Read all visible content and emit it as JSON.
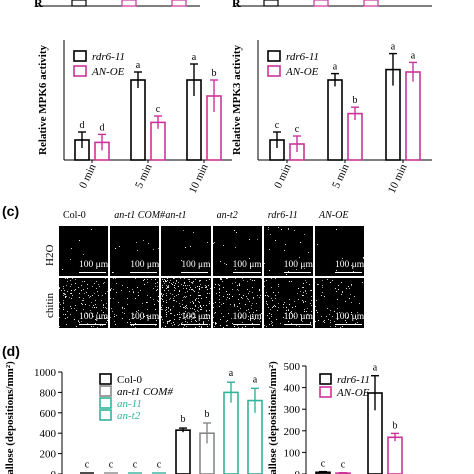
{
  "panel_labels": {
    "c": "(c)",
    "d": "(d)"
  },
  "top_fragments": {
    "left_ylabel_tail": "R",
    "right_ylabel_tail": "R",
    "x_ticks": [
      "0 min",
      "5 min",
      "10 min"
    ]
  },
  "panel_c": {
    "columns": [
      "Col-0",
      "an-t1 COM#",
      "an-t1",
      "an-t2",
      "rdr6-11",
      "AN-OE"
    ],
    "rows": [
      "H2O",
      "chitin"
    ],
    "scale_bar": "100 μm"
  },
  "colors": {
    "black": "#000000",
    "pink": "#cc3399",
    "teal": "#33b39b",
    "gray": "#888888"
  },
  "chart_data": [
    {
      "type": "bar",
      "title": "",
      "ylabel": "Relative MPK6 activity",
      "xlabel": "",
      "categories": [
        "0 min",
        "5 min",
        "10 min"
      ],
      "ylim": [
        0,
        1.5
      ],
      "ticks": [],
      "series": [
        {
          "name": "rdr6-11",
          "color": "#000000",
          "values": [
            0.25,
            1.0,
            1.0
          ],
          "errors": [
            0.1,
            0.1,
            0.2
          ],
          "letters": [
            "d",
            "a",
            "a"
          ]
        },
        {
          "name": "AN-OE",
          "color": "#cc3399",
          "values": [
            0.22,
            0.47,
            0.8
          ],
          "errors": [
            0.1,
            0.08,
            0.2
          ],
          "letters": [
            "d",
            "c",
            "b"
          ]
        }
      ]
    },
    {
      "type": "bar",
      "title": "",
      "ylabel": "Relative MPK3 activity",
      "xlabel": "",
      "categories": [
        "0 min",
        "5 min",
        "10 min"
      ],
      "ylim": [
        0,
        1.5
      ],
      "ticks": [],
      "series": [
        {
          "name": "rdr6-11",
          "color": "#000000",
          "values": [
            0.25,
            1.0,
            1.13
          ],
          "errors": [
            0.1,
            0.08,
            0.2
          ],
          "letters": [
            "c",
            "a",
            "a"
          ]
        },
        {
          "name": "AN-OE",
          "color": "#cc3399",
          "values": [
            0.2,
            0.58,
            1.1
          ],
          "errors": [
            0.1,
            0.08,
            0.12
          ],
          "letters": [
            "c",
            "b",
            "a"
          ]
        }
      ]
    },
    {
      "type": "bar",
      "title": "",
      "ylabel": "allose (depositions/mm²)",
      "xlabel": "",
      "categories": [
        "",
        ""
      ],
      "ylim": [
        0,
        1000
      ],
      "ticks": [
        0,
        200,
        400,
        600,
        800,
        1000
      ],
      "series": [
        {
          "name": "Col-0",
          "color": "#000000",
          "values": [
            5,
            430
          ],
          "errors": [
            0,
            20
          ],
          "letters": [
            "c",
            "b"
          ]
        },
        {
          "name": "an-t1 COM#",
          "color": "#888888",
          "values": [
            5,
            400
          ],
          "errors": [
            0,
            100
          ],
          "letters": [
            "c",
            "b"
          ]
        },
        {
          "name": "an-11",
          "color": "#33b39b",
          "values": [
            5,
            800
          ],
          "errors": [
            0,
            100
          ],
          "letters": [
            "c",
            "a"
          ]
        },
        {
          "name": "an-t2",
          "color": "#33b39b",
          "values": [
            5,
            720
          ],
          "errors": [
            0,
            120
          ],
          "letters": [
            "c",
            "a"
          ]
        }
      ]
    },
    {
      "type": "bar",
      "title": "",
      "ylabel": "allose (depositions/mm²)",
      "xlabel": "",
      "categories": [
        "",
        ""
      ],
      "ylim": [
        0,
        500
      ],
      "ticks": [
        0,
        100,
        200,
        300,
        400,
        500
      ],
      "series": [
        {
          "name": "rdr6-11",
          "color": "#000000",
          "values": [
            8,
            375
          ],
          "errors": [
            3,
            80
          ],
          "letters": [
            "c",
            "a"
          ]
        },
        {
          "name": "AN-OE",
          "color": "#cc3399",
          "values": [
            4,
            170
          ],
          "errors": [
            2,
            18
          ],
          "letters": [
            "c",
            "b"
          ]
        }
      ]
    }
  ]
}
